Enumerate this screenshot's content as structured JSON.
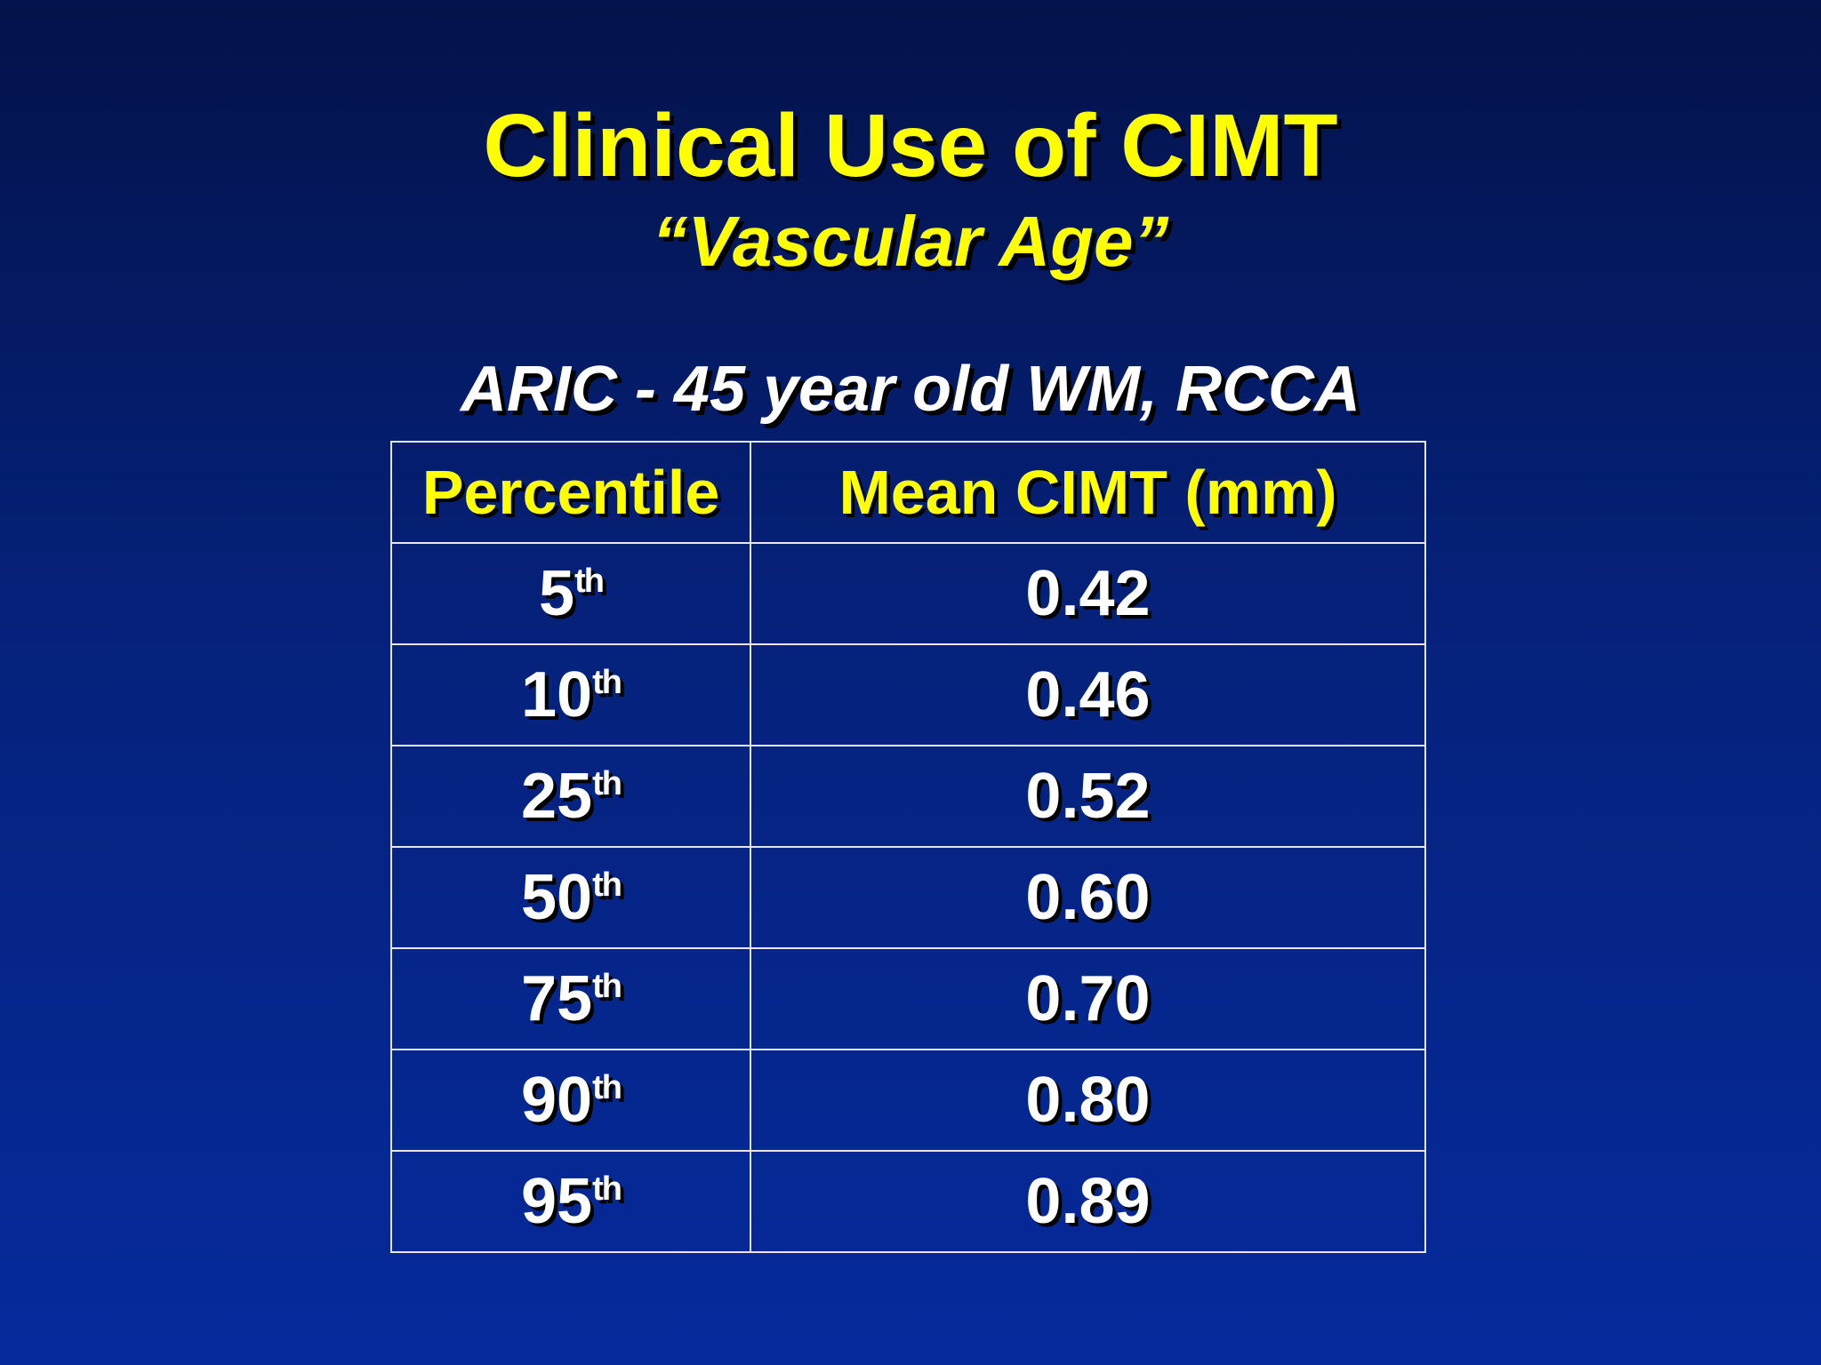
{
  "slide": {
    "title": "Clinical Use of CIMT",
    "subtitle": "“Vascular Age”",
    "caption": "ARIC - 45 year old WM, RCCA"
  },
  "table": {
    "headers": [
      "Percentile",
      "Mean CIMT (mm)"
    ],
    "rows": [
      {
        "percentile": "5",
        "suffix": "th",
        "value": "0.42"
      },
      {
        "percentile": "10",
        "suffix": "th",
        "value": "0.46"
      },
      {
        "percentile": "25",
        "suffix": "th",
        "value": "0.52"
      },
      {
        "percentile": "50",
        "suffix": "th",
        "value": "0.60"
      },
      {
        "percentile": "75",
        "suffix": "th",
        "value": "0.70"
      },
      {
        "percentile": "90",
        "suffix": "th",
        "value": "0.80"
      },
      {
        "percentile": "95",
        "suffix": "th",
        "value": "0.89"
      }
    ]
  },
  "colors": {
    "title": "#ffff00",
    "body_text": "#ffffff",
    "background_top": "#03124a",
    "background_bottom": "#052a9c"
  }
}
